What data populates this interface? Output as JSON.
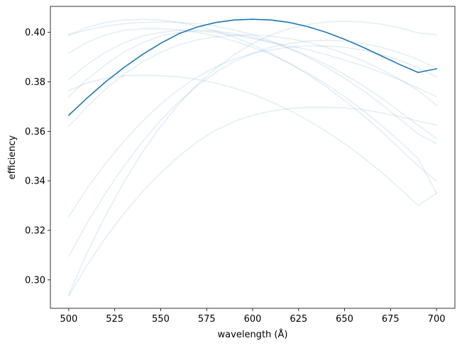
{
  "chart_data": {
    "type": "line",
    "xlabel": "wavelength (Å)",
    "ylabel": "efficiency",
    "xlim": [
      490,
      710
    ],
    "ylim": [
      0.2885,
      0.4105
    ],
    "xticks": [
      500,
      525,
      550,
      575,
      600,
      625,
      650,
      675,
      700
    ],
    "xtick_labels": [
      "500",
      "525",
      "550",
      "575",
      "600",
      "625",
      "650",
      "675",
      "700"
    ],
    "yticks": [
      0.3,
      0.32,
      0.34,
      0.36,
      0.38,
      0.4
    ],
    "ytick_labels": [
      "0.30",
      "0.32",
      "0.34",
      "0.36",
      "0.38",
      "0.40"
    ],
    "grid": false,
    "x": [
      500,
      510,
      520,
      530,
      540,
      550,
      560,
      570,
      580,
      590,
      600,
      610,
      620,
      630,
      640,
      650,
      660,
      670,
      680,
      690,
      700
    ],
    "highlight_color": "#1f77b4",
    "background_color": "#1f77b4",
    "background_opacity": 0.12,
    "series": [
      {
        "values": [
          0.3665,
          0.3735,
          0.38,
          0.3858,
          0.391,
          0.3956,
          0.3995,
          0.4022,
          0.404,
          0.405,
          0.4053,
          0.405,
          0.404,
          0.4023,
          0.4,
          0.3972,
          0.394,
          0.3905,
          0.387,
          0.3838,
          0.3853
        ],
        "highlight": true
      },
      {
        "values": [
          0.399,
          0.401,
          0.4025,
          0.4035,
          0.404,
          0.4042,
          0.404,
          0.4035,
          0.4025,
          0.401,
          0.399,
          0.3965,
          0.3935,
          0.39,
          0.386,
          0.3815,
          0.3765,
          0.371,
          0.365,
          0.359,
          0.355
        ],
        "highlight": false
      },
      {
        "values": [
          0.399,
          0.402,
          0.404,
          0.405,
          0.4053,
          0.405,
          0.404,
          0.4025,
          0.4005,
          0.398,
          0.395,
          0.3915,
          0.3875,
          0.383,
          0.378,
          0.3725,
          0.3665,
          0.36,
          0.353,
          0.346,
          0.34
        ],
        "highlight": false
      },
      {
        "values": [
          0.3915,
          0.396,
          0.399,
          0.4008,
          0.4015,
          0.4015,
          0.401,
          0.4,
          0.3985,
          0.3965,
          0.394,
          0.391,
          0.3875,
          0.3835,
          0.379,
          0.374,
          0.3685,
          0.3625,
          0.356,
          0.349,
          0.335
        ],
        "highlight": false
      },
      {
        "values": [
          0.381,
          0.387,
          0.392,
          0.3958,
          0.3985,
          0.4,
          0.4008,
          0.401,
          0.4005,
          0.3995,
          0.398,
          0.396,
          0.3935,
          0.3905,
          0.387,
          0.383,
          0.3785,
          0.3735,
          0.368,
          0.3625,
          0.357
        ],
        "highlight": false
      },
      {
        "values": [
          0.3765,
          0.3795,
          0.3815,
          0.3825,
          0.3827,
          0.3825,
          0.382,
          0.381,
          0.3795,
          0.3775,
          0.375,
          0.372,
          0.3685,
          0.3645,
          0.36,
          0.355,
          0.3495,
          0.3435,
          0.337,
          0.33,
          0.335
        ],
        "highlight": false
      },
      {
        "values": [
          0.374,
          0.381,
          0.387,
          0.392,
          0.3958,
          0.3985,
          0.4,
          0.4005,
          0.4,
          0.3988,
          0.3975,
          0.396,
          0.3945,
          0.393,
          0.391,
          0.3888,
          0.3865,
          0.3838,
          0.3808,
          0.3775,
          0.374
        ],
        "highlight": false
      },
      {
        "values": [
          0.362,
          0.37,
          0.377,
          0.383,
          0.388,
          0.392,
          0.395,
          0.397,
          0.3982,
          0.3988,
          0.399,
          0.3985,
          0.3975,
          0.396,
          0.394,
          0.3915,
          0.3885,
          0.385,
          0.381,
          0.3765,
          0.3705
        ],
        "highlight": false
      },
      {
        "values": [
          0.3255,
          0.337,
          0.347,
          0.356,
          0.364,
          0.371,
          0.377,
          0.382,
          0.386,
          0.3892,
          0.3915,
          0.393,
          0.394,
          0.3945,
          0.3945,
          0.394,
          0.3928,
          0.391,
          0.3887,
          0.3857,
          0.382
        ],
        "highlight": false
      },
      {
        "values": [
          0.3095,
          0.323,
          0.335,
          0.346,
          0.3558,
          0.3645,
          0.372,
          0.3785,
          0.3838,
          0.3882,
          0.3915,
          0.394,
          0.3955,
          0.3965,
          0.3968,
          0.3965,
          0.3955,
          0.394,
          0.3918,
          0.389,
          0.3855
        ],
        "highlight": false
      },
      {
        "values": [
          0.294,
          0.311,
          0.326,
          0.3395,
          0.3515,
          0.362,
          0.3712,
          0.379,
          0.3855,
          0.391,
          0.3955,
          0.399,
          0.4015,
          0.4032,
          0.4042,
          0.4045,
          0.4042,
          0.4033,
          0.4018,
          0.3998,
          0.399
        ],
        "highlight": false
      },
      {
        "values": [
          0.2935,
          0.306,
          0.317,
          0.3268,
          0.3355,
          0.3432,
          0.35,
          0.3558,
          0.3605,
          0.364,
          0.3665,
          0.3682,
          0.3692,
          0.3697,
          0.3697,
          0.3695,
          0.3688,
          0.3675,
          0.366,
          0.3642,
          0.3625
        ],
        "highlight": false
      }
    ]
  }
}
